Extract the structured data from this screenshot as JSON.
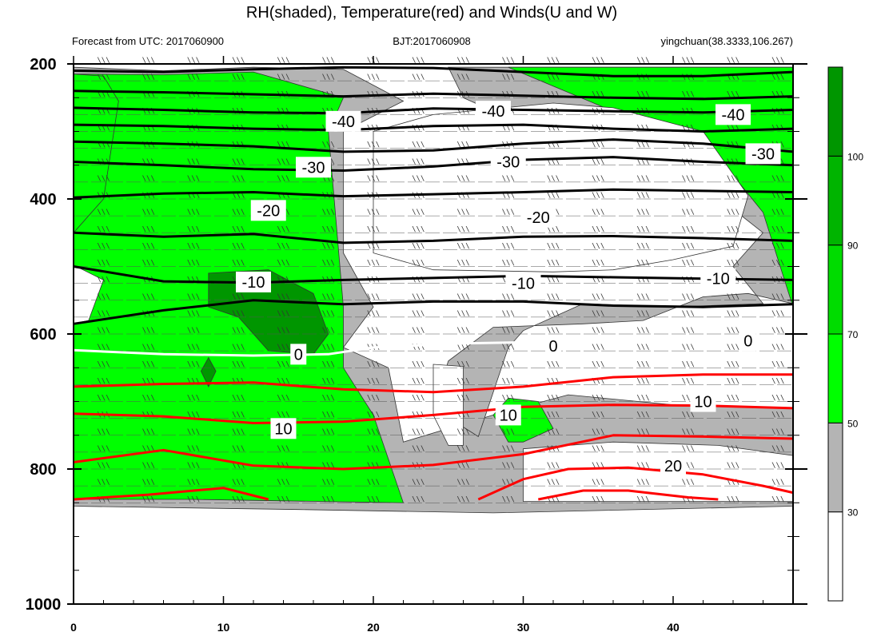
{
  "title": "RH(shaded), Temperature(red) and Winds(U and W)",
  "subtitle_left": "Forecast from UTC: 2017060900",
  "subtitle_center": "BJT:2017060908",
  "subtitle_right": "yingchuan(38.3333,106.267)",
  "chart_data": {
    "type": "contour",
    "x_axis": {
      "range": [
        0,
        48
      ],
      "ticks": [
        0,
        10,
        20,
        30,
        40
      ],
      "labels": [
        "0",
        "10",
        "20",
        "30",
        "40"
      ]
    },
    "y_axis": {
      "range": [
        200,
        1000
      ],
      "inverted": true,
      "ticks": [
        200,
        400,
        600,
        800,
        1000
      ],
      "labels": [
        "200",
        "400",
        "600",
        "800",
        "1000"
      ]
    },
    "rh_colorbar": {
      "levels": [
        30,
        50,
        70,
        90,
        100
      ],
      "labels": [
        "30",
        "50",
        "70",
        "90",
        "100"
      ],
      "colors": [
        "#ffffff",
        "#b4b4b4",
        "#00ff00",
        "#00dc00",
        "#00b400",
        "#009600"
      ]
    },
    "temperature_contours": [
      {
        "value": -40,
        "label": "-40",
        "color": "#000000",
        "points": [
          [
            0,
            210
          ],
          [
            6,
            212
          ],
          [
            12,
            208
          ],
          [
            18,
            205
          ],
          [
            24,
            206
          ],
          [
            30,
            212
          ],
          [
            36,
            218
          ],
          [
            42,
            218
          ],
          [
            48,
            212
          ]
        ]
      },
      {
        "value": -40,
        "label": "-40",
        "color": "#000000",
        "points": [
          [
            0,
            240
          ],
          [
            6,
            242
          ],
          [
            12,
            245
          ],
          [
            18,
            248
          ],
          [
            24,
            244
          ],
          [
            30,
            247
          ],
          [
            36,
            250
          ],
          [
            42,
            252
          ],
          [
            48,
            248
          ]
        ]
      },
      {
        "value": -40,
        "label": "-40",
        "color": "#000000",
        "points": [
          [
            0,
            265
          ],
          [
            6,
            268
          ],
          [
            12,
            272
          ],
          [
            18,
            273
          ],
          [
            24,
            266
          ],
          [
            30,
            268
          ],
          [
            36,
            270
          ],
          [
            42,
            272
          ],
          [
            48,
            268
          ]
        ]
      },
      {
        "value": -40,
        "label": "-40",
        "color": "#000000",
        "points": [
          [
            0,
            290
          ],
          [
            6,
            292
          ],
          [
            12,
            296
          ],
          [
            18,
            298
          ],
          [
            24,
            292
          ],
          [
            30,
            290
          ],
          [
            36,
            296
          ],
          [
            42,
            300
          ],
          [
            48,
            296
          ]
        ]
      },
      {
        "value": -30,
        "label": "-30",
        "color": "#000000",
        "points": [
          [
            0,
            315
          ],
          [
            6,
            318
          ],
          [
            12,
            322
          ],
          [
            18,
            330
          ],
          [
            24,
            328
          ],
          [
            30,
            318
          ],
          [
            36,
            312
          ],
          [
            42,
            318
          ],
          [
            48,
            330
          ]
        ]
      },
      {
        "value": -30,
        "label": "-30",
        "color": "#000000",
        "points": [
          [
            0,
            345
          ],
          [
            6,
            350
          ],
          [
            12,
            356
          ],
          [
            18,
            358
          ],
          [
            24,
            352
          ],
          [
            30,
            342
          ],
          [
            36,
            338
          ],
          [
            42,
            345
          ],
          [
            48,
            350
          ]
        ]
      },
      {
        "value": -20,
        "label": "-20",
        "color": "#000000",
        "points": [
          [
            0,
            398
          ],
          [
            6,
            392
          ],
          [
            12,
            390
          ],
          [
            18,
            396
          ],
          [
            24,
            393
          ],
          [
            30,
            390
          ],
          [
            36,
            386
          ],
          [
            42,
            388
          ],
          [
            48,
            390
          ]
        ]
      },
      {
        "value": -20,
        "label": "-20",
        "color": "#000000",
        "points": [
          [
            0,
            450
          ],
          [
            6,
            456
          ],
          [
            12,
            452
          ],
          [
            18,
            465
          ],
          [
            24,
            462
          ],
          [
            30,
            456
          ],
          [
            36,
            455
          ],
          [
            42,
            458
          ],
          [
            48,
            462
          ]
        ]
      },
      {
        "value": -10,
        "label": "-10",
        "color": "#000000",
        "points": [
          [
            0,
            500
          ],
          [
            6,
            522
          ],
          [
            12,
            524
          ],
          [
            18,
            520
          ],
          [
            24,
            517
          ],
          [
            30,
            514
          ],
          [
            36,
            516
          ],
          [
            42,
            518
          ],
          [
            48,
            520
          ]
        ]
      },
      {
        "value": -10,
        "label": "-10",
        "color": "#000000",
        "points": [
          [
            0,
            585
          ],
          [
            6,
            565
          ],
          [
            12,
            550
          ],
          [
            18,
            556
          ],
          [
            24,
            552
          ],
          [
            30,
            552
          ],
          [
            36,
            558
          ],
          [
            42,
            560
          ],
          [
            48,
            556
          ]
        ]
      },
      {
        "value": 0,
        "label": "0",
        "color": "#ffffff",
        "points": [
          [
            0,
            624
          ],
          [
            6,
            630
          ],
          [
            12,
            632
          ],
          [
            17,
            630
          ],
          [
            20,
            620
          ],
          [
            26,
            614
          ],
          [
            31,
            612
          ],
          [
            36,
            612
          ],
          [
            42,
            610
          ],
          [
            48,
            612
          ]
        ]
      },
      {
        "value": 10,
        "label": "10",
        "color": "#ff0000",
        "points": [
          [
            0,
            678
          ],
          [
            6,
            674
          ],
          [
            12,
            672
          ],
          [
            18,
            682
          ],
          [
            24,
            686
          ],
          [
            30,
            678
          ],
          [
            36,
            664
          ],
          [
            42,
            660
          ],
          [
            48,
            660
          ]
        ]
      },
      {
        "value": 10,
        "label": "10",
        "color": "#ff0000",
        "points": [
          [
            0,
            718
          ],
          [
            6,
            722
          ],
          [
            12,
            732
          ],
          [
            18,
            730
          ],
          [
            24,
            720
          ],
          [
            30,
            708
          ],
          [
            36,
            705
          ],
          [
            42,
            706
          ],
          [
            48,
            710
          ]
        ]
      },
      {
        "value": 10,
        "label": "10",
        "color": "#ff0000",
        "points": [
          [
            0,
            790
          ],
          [
            6,
            772
          ],
          [
            12,
            795
          ],
          [
            18,
            800
          ],
          [
            24,
            794
          ],
          [
            30,
            778
          ],
          [
            36,
            750
          ],
          [
            42,
            752
          ],
          [
            48,
            755
          ]
        ]
      },
      {
        "value": 20,
        "label": "20",
        "color": "#ff0000",
        "points": [
          [
            0,
            845
          ],
          [
            5,
            838
          ],
          [
            10,
            828
          ],
          [
            13,
            845
          ]
        ]
      },
      {
        "value": 20,
        "label": "20",
        "color": "#ff0000",
        "points": [
          [
            27,
            845
          ],
          [
            30,
            815
          ],
          [
            33,
            800
          ],
          [
            37,
            798
          ],
          [
            42,
            808
          ],
          [
            46,
            825
          ],
          [
            48,
            835
          ]
        ]
      },
      {
        "value": 20,
        "label": "20",
        "color": "#ff0000",
        "points": [
          [
            31,
            845
          ],
          [
            34,
            832
          ],
          [
            37,
            832
          ],
          [
            41,
            842
          ],
          [
            43,
            845
          ]
        ]
      }
    ],
    "contour_labels": [
      {
        "text": "-40",
        "x": 18,
        "y": 285
      },
      {
        "text": "-40",
        "x": 28,
        "y": 270
      },
      {
        "text": "-40",
        "x": 44,
        "y": 275
      },
      {
        "text": "-30",
        "x": 16,
        "y": 353
      },
      {
        "text": "-30",
        "x": 29,
        "y": 345
      },
      {
        "text": "-30",
        "x": 46,
        "y": 333
      },
      {
        "text": "-20",
        "x": 13,
        "y": 417
      },
      {
        "text": "-20",
        "x": 31,
        "y": 427
      },
      {
        "text": "-10",
        "x": 12,
        "y": 523
      },
      {
        "text": "-10",
        "x": 30,
        "y": 525
      },
      {
        "text": "-10",
        "x": 43,
        "y": 518
      },
      {
        "text": "0",
        "x": 15,
        "y": 630
      },
      {
        "text": "0",
        "x": 32,
        "y": 618
      },
      {
        "text": "0",
        "x": 45,
        "y": 610
      },
      {
        "text": "10",
        "x": 14,
        "y": 740
      },
      {
        "text": "10",
        "x": 29,
        "y": 720
      },
      {
        "text": "10",
        "x": 42,
        "y": 700
      },
      {
        "text": "20",
        "x": 40,
        "y": 795
      }
    ],
    "rh_regions": [
      {
        "rh_class": "gray",
        "points": [
          [
            0,
            205
          ],
          [
            6,
            210
          ],
          [
            12,
            205
          ],
          [
            18,
            208
          ],
          [
            22,
            255
          ],
          [
            18,
            300
          ],
          [
            18,
            480
          ],
          [
            20,
            560
          ],
          [
            18,
            620
          ],
          [
            21,
            650
          ],
          [
            22,
            760
          ],
          [
            28,
            720
          ],
          [
            33,
            690
          ],
          [
            40,
            705
          ],
          [
            48,
            710
          ],
          [
            48,
            855
          ],
          [
            28,
            865
          ],
          [
            15,
            860
          ],
          [
            0,
            855
          ]
        ]
      },
      {
        "rh_class": "green",
        "points": [
          [
            0,
            215
          ],
          [
            6,
            216
          ],
          [
            12,
            212
          ],
          [
            18,
            250
          ],
          [
            17,
            300
          ],
          [
            18,
            560
          ],
          [
            18,
            650
          ],
          [
            20,
            720
          ],
          [
            22,
            850
          ],
          [
            8,
            845
          ],
          [
            0,
            845
          ]
        ]
      },
      {
        "rh_class": "green",
        "points": [
          [
            29,
            695
          ],
          [
            31,
            700
          ],
          [
            32,
            740
          ],
          [
            30,
            760
          ],
          [
            29,
            760
          ],
          [
            28,
            720
          ]
        ]
      },
      {
        "rh_class": "gray",
        "points": [
          [
            25,
            205
          ],
          [
            48,
            205
          ],
          [
            48,
            555
          ],
          [
            45,
            540
          ],
          [
            42,
            545
          ],
          [
            38,
            580
          ],
          [
            34,
            585
          ],
          [
            28,
            590
          ],
          [
            25,
            640
          ],
          [
            24,
            710
          ],
          [
            27,
            752
          ],
          [
            29,
            620
          ],
          [
            30,
            595
          ],
          [
            34,
            555
          ],
          [
            40,
            560
          ],
          [
            46,
            555
          ],
          [
            44,
            500
          ],
          [
            46,
            450
          ],
          [
            42,
            380
          ],
          [
            36,
            340
          ],
          [
            30,
            290
          ],
          [
            26,
            250
          ]
        ]
      },
      {
        "rh_class": "green",
        "points": [
          [
            29,
            205
          ],
          [
            48,
            205
          ],
          [
            48,
            560
          ],
          [
            46,
            420
          ],
          [
            42,
            310
          ],
          [
            36,
            270
          ]
        ]
      },
      {
        "rh_class": "green",
        "points": [
          [
            0,
            215
          ],
          [
            2,
            218
          ],
          [
            3,
            255
          ],
          [
            2,
            400
          ],
          [
            0,
            450
          ]
        ]
      },
      {
        "rh_class": "green2",
        "points": [
          [
            9,
            510
          ],
          [
            13,
            505
          ],
          [
            16,
            540
          ],
          [
            17,
            600
          ],
          [
            16,
            630
          ],
          [
            13,
            625
          ],
          [
            11,
            575
          ],
          [
            9,
            560
          ]
        ]
      },
      {
        "rh_class": "green2",
        "points": [
          [
            9,
            635
          ],
          [
            9.5,
            655
          ],
          [
            9,
            678
          ],
          [
            8.5,
            655
          ]
        ]
      },
      {
        "rh_class": "white",
        "points": [
          [
            24,
            645
          ],
          [
            26,
            648
          ],
          [
            26,
            765
          ],
          [
            25,
            765
          ],
          [
            24,
            720
          ]
        ]
      },
      {
        "rh_class": "white",
        "points": [
          [
            32,
            258
          ],
          [
            36,
            265
          ],
          [
            42,
            300
          ],
          [
            45,
            395
          ],
          [
            44,
            470
          ],
          [
            40,
            490
          ],
          [
            36,
            505
          ],
          [
            32,
            508
          ],
          [
            24,
            505
          ],
          [
            20,
            480
          ],
          [
            20,
            300
          ],
          [
            24,
            275
          ]
        ]
      },
      {
        "rh_class": "white",
        "points": [
          [
            0,
            498
          ],
          [
            2,
            520
          ],
          [
            1,
            580
          ],
          [
            0,
            585
          ]
        ]
      },
      {
        "rh_class": "white",
        "points": [
          [
            30,
            770
          ],
          [
            36,
            760
          ],
          [
            43,
            765
          ],
          [
            48,
            780
          ],
          [
            48,
            848
          ],
          [
            30,
            848
          ]
        ]
      }
    ],
    "wind_barbs_text": "\\\\\\"
  }
}
